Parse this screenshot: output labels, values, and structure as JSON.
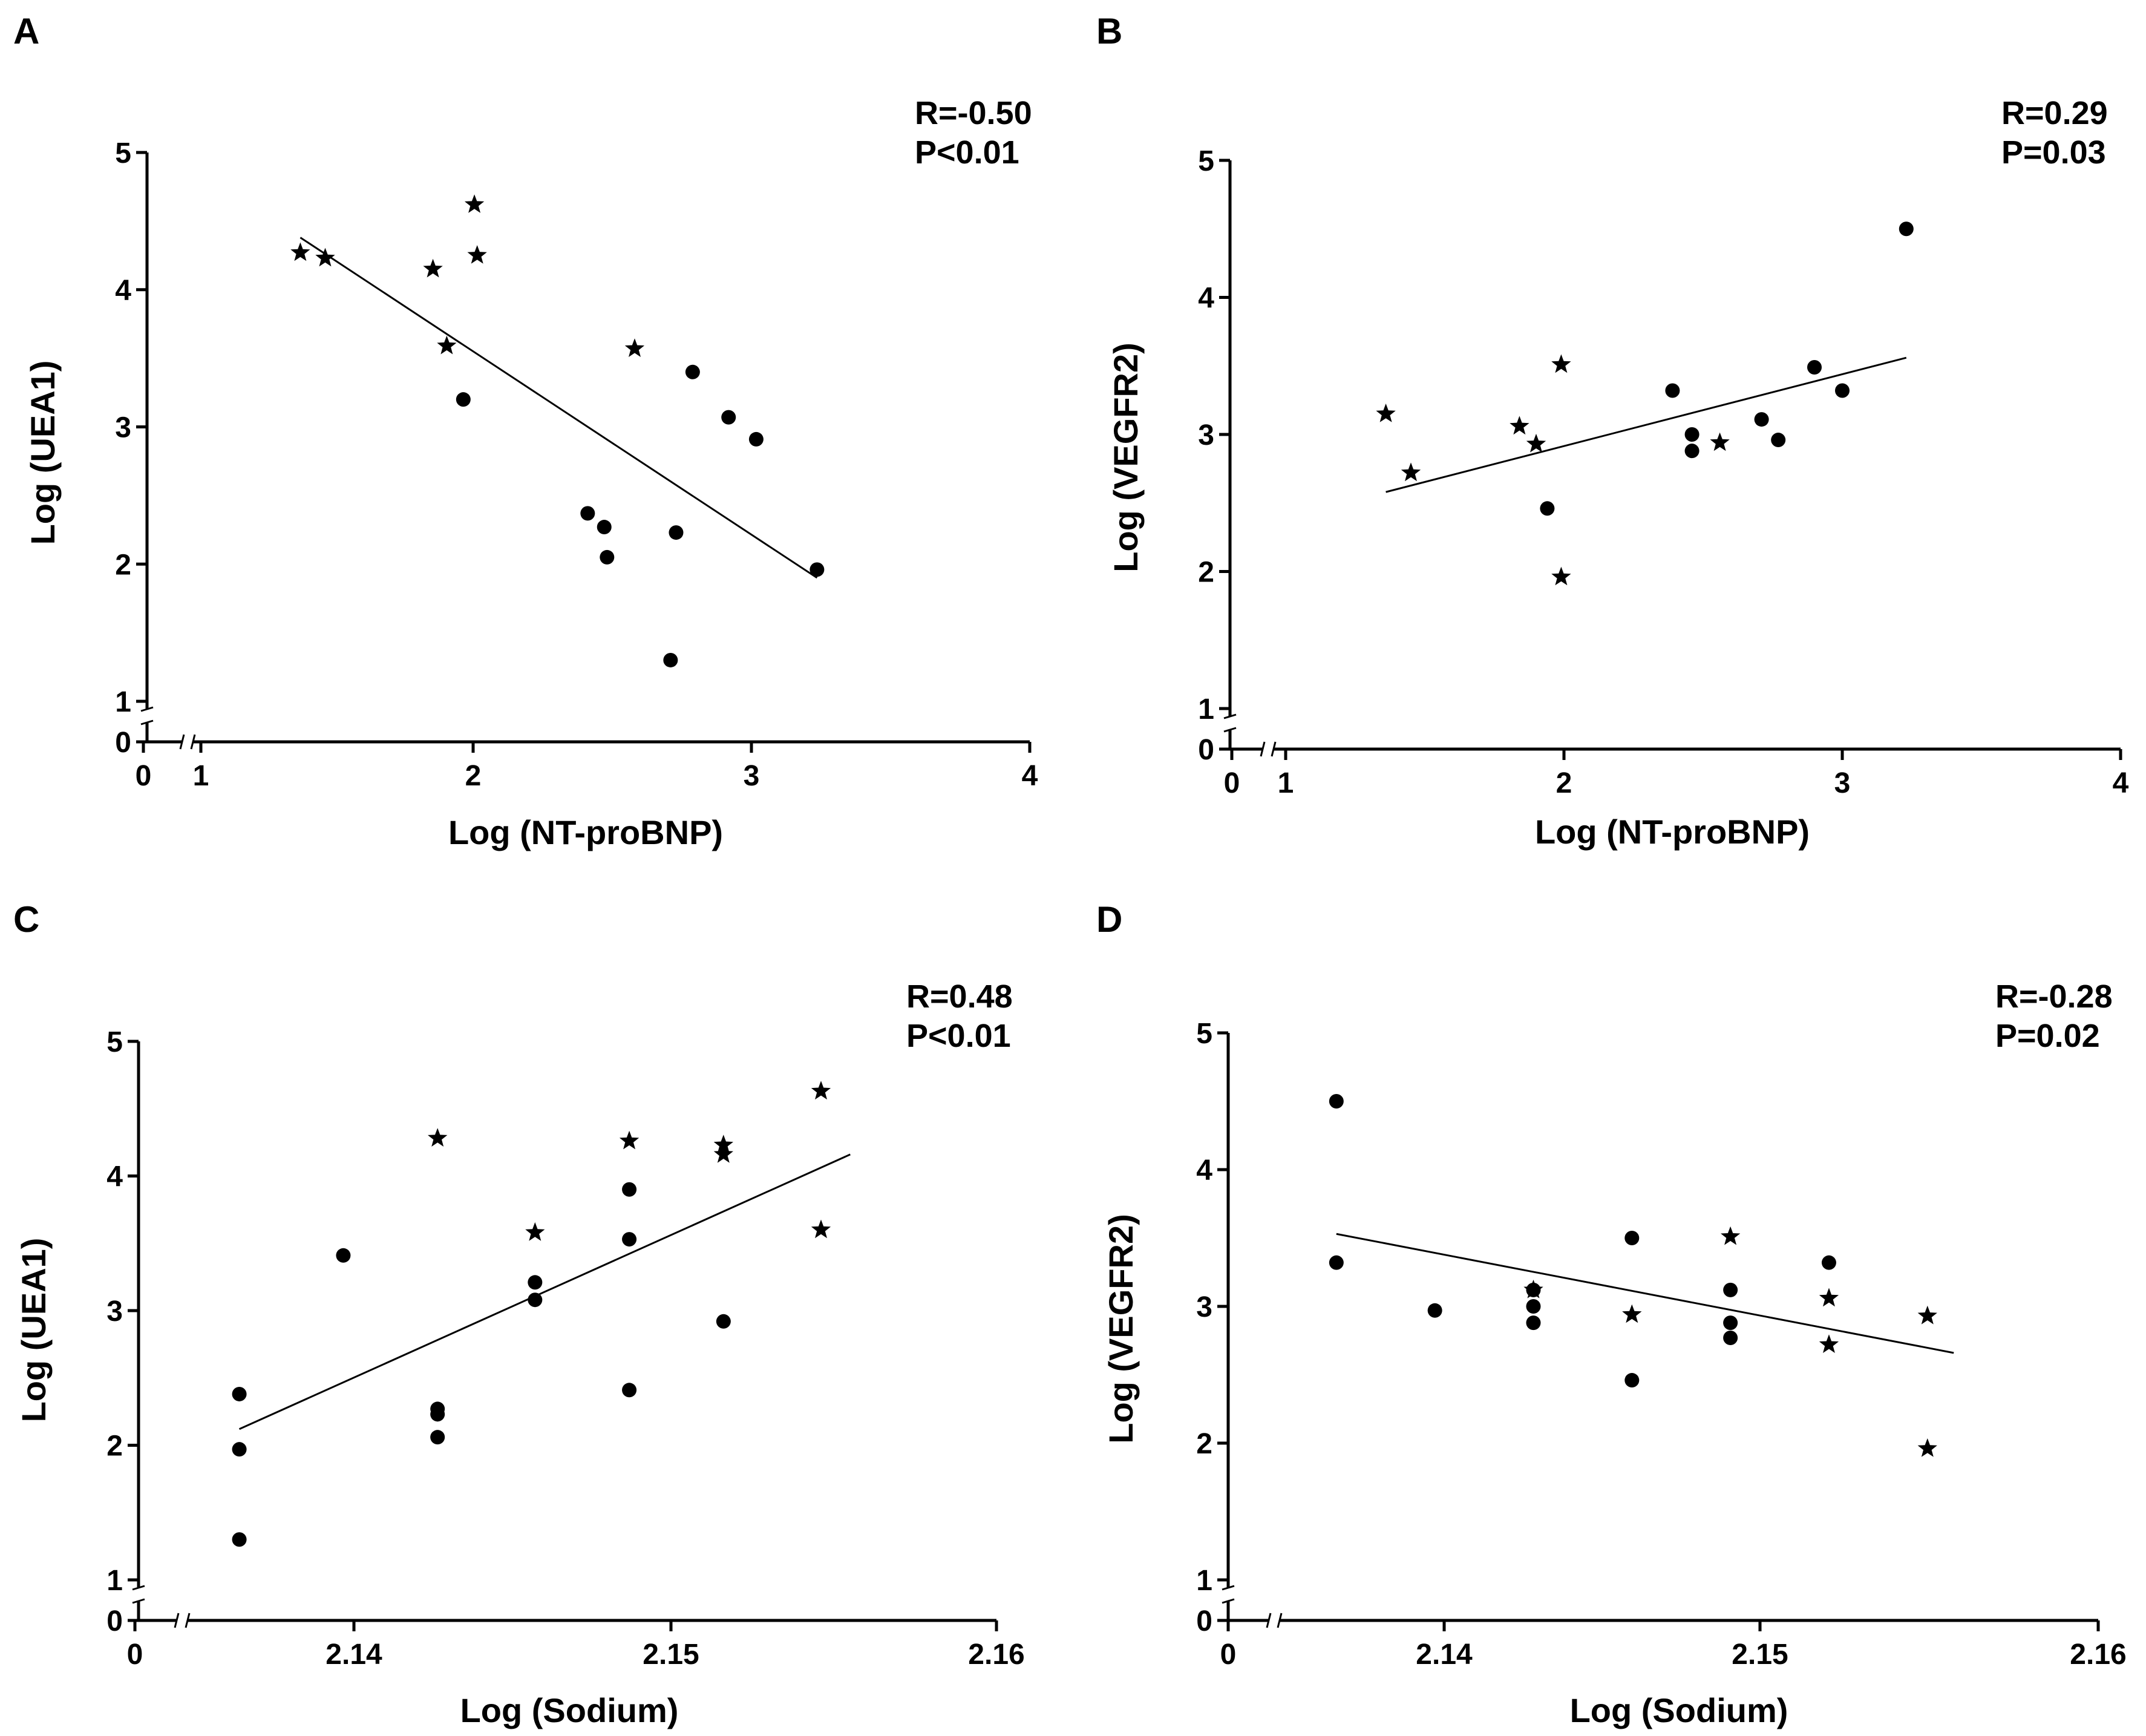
{
  "chart_data": [
    {
      "panel": "A",
      "type": "scatter",
      "stats": [
        "R=-0.50",
        "P<0.01"
      ],
      "xlabel": "Log (NT-proBNP)",
      "ylabel": "Log (UEA1)",
      "xlim": [
        1,
        4
      ],
      "ylim": [
        0,
        5
      ],
      "x_ticks": [
        "0",
        "1",
        "2",
        "3",
        "4"
      ],
      "y_ticks": [
        "0",
        "1",
        "2",
        "3",
        "4",
        "5"
      ],
      "fit_line": [
        [
          1.36,
          4.38
        ],
        [
          3.23,
          1.9
        ]
      ],
      "series": [
        {
          "name": "dots",
          "marker": "circle",
          "points": [
            [
              1.95,
              3.2
            ],
            [
              2.4,
              2.37
            ],
            [
              2.46,
              2.27
            ],
            [
              2.47,
              2.05
            ],
            [
              2.7,
              1.3
            ],
            [
              2.72,
              2.23
            ],
            [
              2.78,
              3.4
            ],
            [
              2.91,
              3.07
            ],
            [
              3.01,
              2.91
            ],
            [
              3.23,
              1.96
            ]
          ]
        },
        {
          "name": "stars",
          "marker": "star",
          "points": [
            [
              1.36,
              4.27
            ],
            [
              1.45,
              4.23
            ],
            [
              1.84,
              4.15
            ],
            [
              1.89,
              3.59
            ],
            [
              1.99,
              4.62
            ],
            [
              2.0,
              4.25
            ],
            [
              2.57,
              3.57
            ]
          ]
        }
      ]
    },
    {
      "panel": "B",
      "type": "scatter",
      "stats": [
        "R=0.29",
        "P=0.03"
      ],
      "xlabel": "Log (NT-proBNP)",
      "ylabel": "Log (VEGFR2)",
      "xlim": [
        1,
        4
      ],
      "ylim": [
        0,
        5
      ],
      "x_ticks": [
        "0",
        "1",
        "2",
        "3",
        "4"
      ],
      "y_ticks": [
        "0",
        "1",
        "2",
        "3",
        "4",
        "5"
      ],
      "fit_line": [
        [
          1.36,
          2.58
        ],
        [
          3.23,
          3.56
        ]
      ],
      "series": [
        {
          "name": "dots",
          "marker": "circle",
          "points": [
            [
              1.94,
              2.46
            ],
            [
              2.39,
              3.32
            ],
            [
              2.46,
              3.0
            ],
            [
              2.46,
              2.88
            ],
            [
              2.71,
              3.11
            ],
            [
              2.77,
              2.96
            ],
            [
              2.9,
              3.49
            ],
            [
              3.0,
              3.32
            ],
            [
              3.23,
              4.5
            ]
          ]
        },
        {
          "name": "stars",
          "marker": "star",
          "points": [
            [
              1.36,
              3.15
            ],
            [
              1.45,
              2.72
            ],
            [
              1.84,
              3.06
            ],
            [
              1.9,
              2.93
            ],
            [
              1.99,
              3.51
            ],
            [
              1.99,
              1.96
            ],
            [
              2.56,
              2.94
            ]
          ]
        }
      ]
    },
    {
      "panel": "C",
      "type": "scatter",
      "stats": [
        "R=0.48",
        "P<0.01"
      ],
      "xlabel": "Log (Sodium)",
      "ylabel": "Log (UEA1)",
      "xlim": [
        2.1352,
        2.16
      ],
      "ylim": [
        0,
        5
      ],
      "x_ticks": [
        "0",
        "2.14",
        "2.15",
        "2.16"
      ],
      "y_ticks": [
        "0",
        "1",
        "2",
        "3",
        "4",
        "5"
      ],
      "fit_line": [
        [
          2.1367,
          2.12
        ],
        [
          2.1555,
          4.16
        ]
      ],
      "series": [
        {
          "name": "dots",
          "marker": "circle",
          "points": [
            [
              2.1367,
              2.38
            ],
            [
              2.1367,
              1.97
            ],
            [
              2.1367,
              1.3
            ],
            [
              2.1399,
              3.41
            ],
            [
              2.1428,
              2.27
            ],
            [
              2.1428,
              2.23
            ],
            [
              2.1428,
              2.06
            ],
            [
              2.1458,
              3.21
            ],
            [
              2.1458,
              3.08
            ],
            [
              2.1487,
              3.9
            ],
            [
              2.1487,
              3.53
            ],
            [
              2.1487,
              2.41
            ],
            [
              2.1516,
              2.92
            ]
          ]
        },
        {
          "name": "stars",
          "marker": "star",
          "points": [
            [
              2.1428,
              4.28
            ],
            [
              2.1458,
              3.58
            ],
            [
              2.1487,
              4.26
            ],
            [
              2.1516,
              4.23
            ],
            [
              2.1516,
              4.16
            ],
            [
              2.1546,
              4.63
            ],
            [
              2.1546,
              3.6
            ]
          ]
        }
      ]
    },
    {
      "panel": "D",
      "type": "scatter",
      "stats": [
        "R=-0.28",
        "P=0.02"
      ],
      "xlabel": "Log (Sodium)",
      "ylabel": "Log (VEGFR2)",
      "xlim": [
        2.1352,
        2.16
      ],
      "ylim": [
        0,
        5
      ],
      "x_ticks": [
        "0",
        "2.14",
        "2.15",
        "2.16"
      ],
      "y_ticks": [
        "0",
        "1",
        "2",
        "3",
        "4",
        "5"
      ],
      "fit_line": [
        [
          2.1368,
          3.53
        ],
        [
          2.1556,
          2.66
        ]
      ],
      "series": [
        {
          "name": "dots",
          "marker": "circle",
          "points": [
            [
              2.1368,
              4.5
            ],
            [
              2.1368,
              3.32
            ],
            [
              2.1398,
              2.97
            ],
            [
              2.1428,
              3.12
            ],
            [
              2.1428,
              3.0
            ],
            [
              2.1428,
              2.88
            ],
            [
              2.1458,
              3.5
            ],
            [
              2.1458,
              2.46
            ],
            [
              2.1488,
              3.12
            ],
            [
              2.1488,
              2.88
            ],
            [
              2.1488,
              2.77
            ],
            [
              2.1518,
              3.32
            ]
          ]
        },
        {
          "name": "stars",
          "marker": "star",
          "points": [
            [
              2.1428,
              3.12
            ],
            [
              2.1458,
              2.94
            ],
            [
              2.1488,
              3.51
            ],
            [
              2.1518,
              3.06
            ],
            [
              2.1518,
              2.72
            ],
            [
              2.1548,
              2.93
            ],
            [
              2.1548,
              1.96
            ]
          ]
        }
      ]
    }
  ]
}
